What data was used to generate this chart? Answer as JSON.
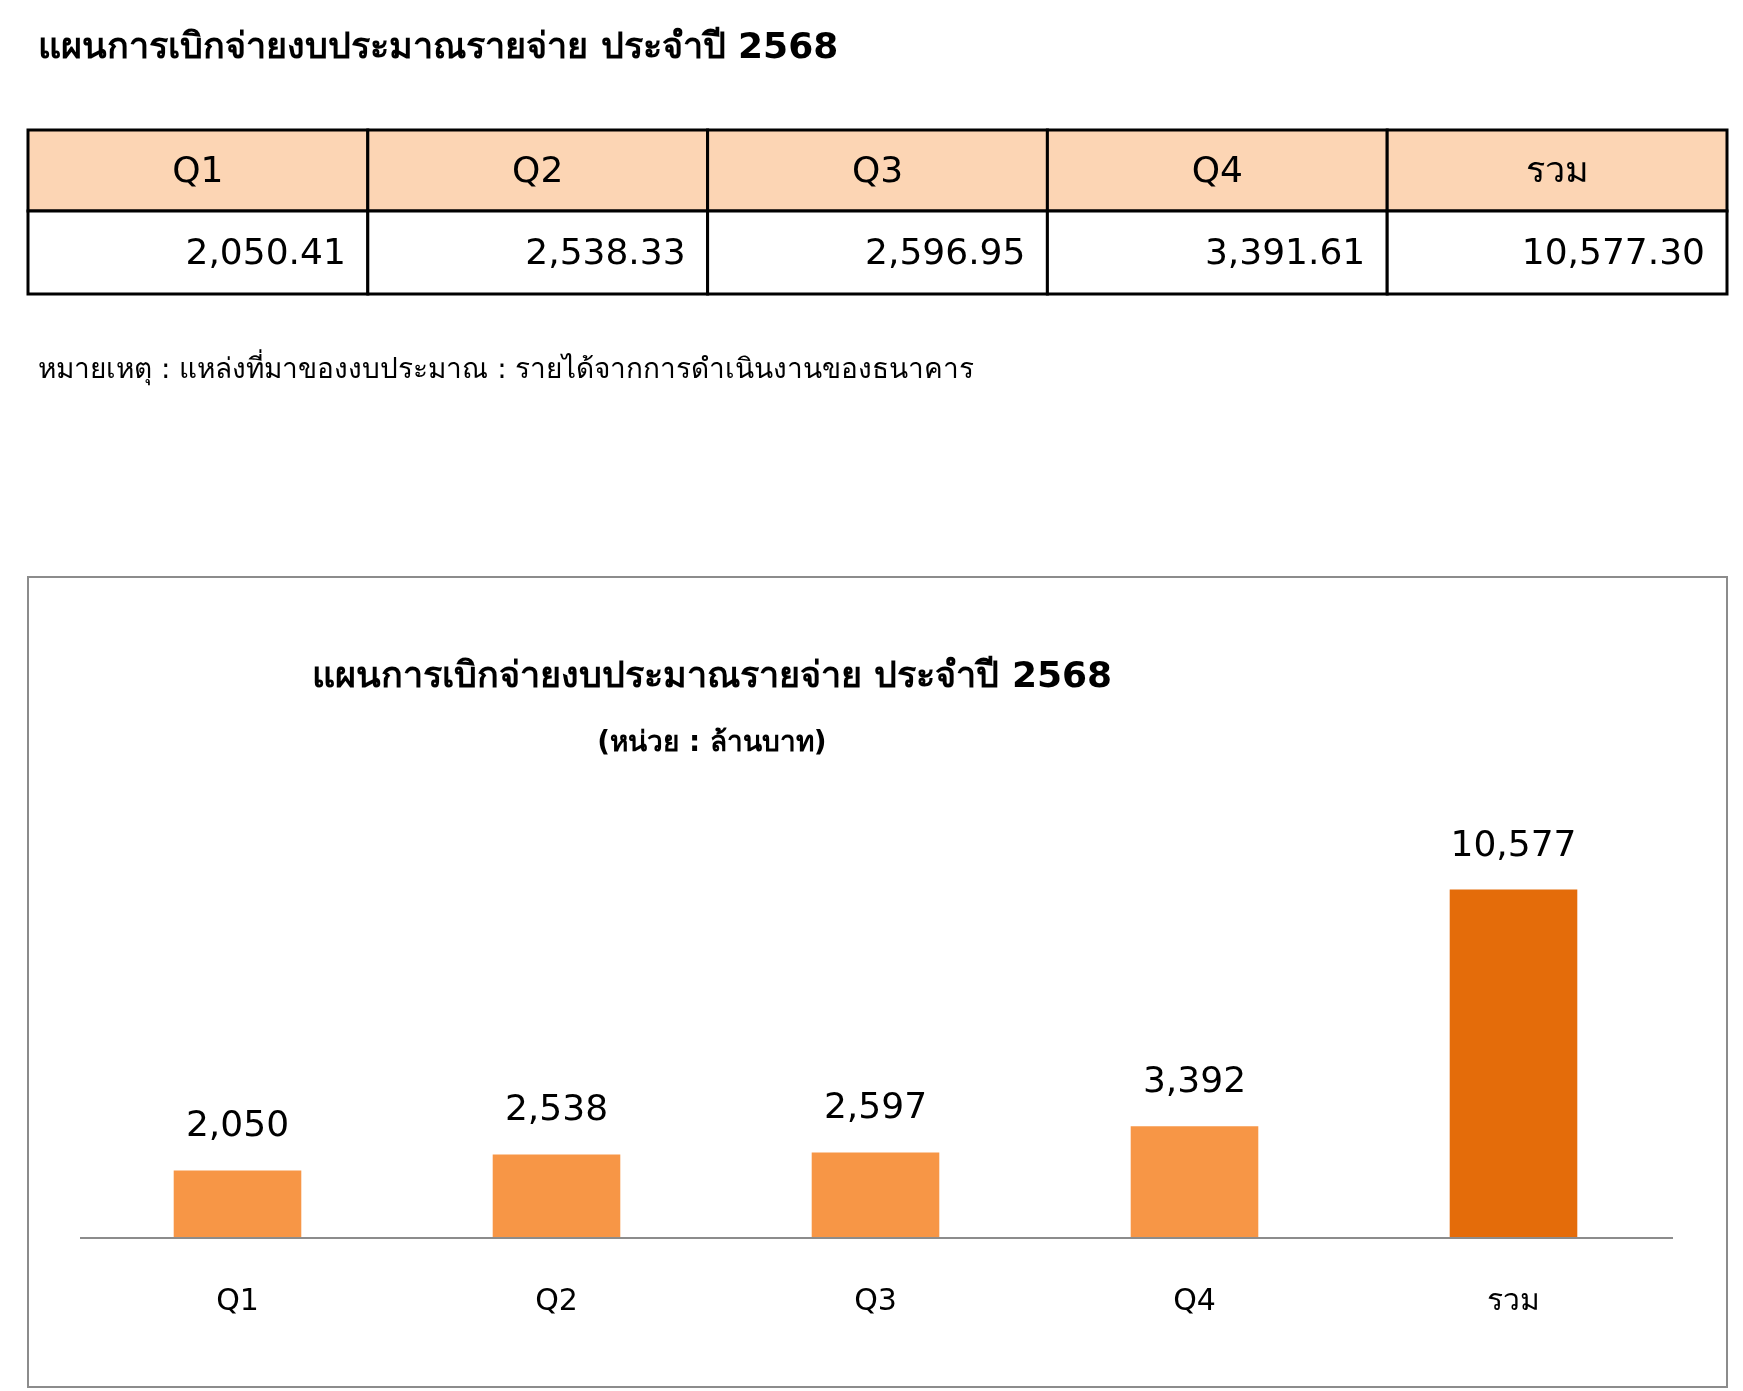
{
  "chart_data": [
    {
      "type": "other",
      "title": "แผนการเบิกจ่ายงบประมาณรายจ่าย ประจำปี 2568",
      "categories": [
        "Q1",
        "Q2",
        "Q3",
        "Q4",
        "รวม"
      ],
      "annotations": [
        "2,050.41",
        "2,538.33",
        "2,596.95",
        "3,391.61",
        "10,577.30",
        "หมายเหตุ : แหล่งที่มาของงบประมาณ : รายได้จากการดำเนินงานของธนาคาร"
      ]
    },
    {
      "type": "bar",
      "title": "แผนการเบิกจ่ายงบประมาณรายจ่าย ประจำปี 2568",
      "subtitle": "(หน่วย : ล้านบาท)",
      "categories": [
        "Q1",
        "Q2",
        "Q3",
        "Q4",
        "รวม"
      ],
      "values": [
        2050.41,
        2538.33,
        2596.95,
        3391.61,
        10577.3
      ],
      "colors": [
        "#f79646",
        "#f79646",
        "#f79646",
        "#f79646",
        "#e46c0a"
      ],
      "value_labels": [
        "2,050",
        "2,538",
        "2,597",
        "3,392",
        "10,577"
      ]
    }
  ]
}
